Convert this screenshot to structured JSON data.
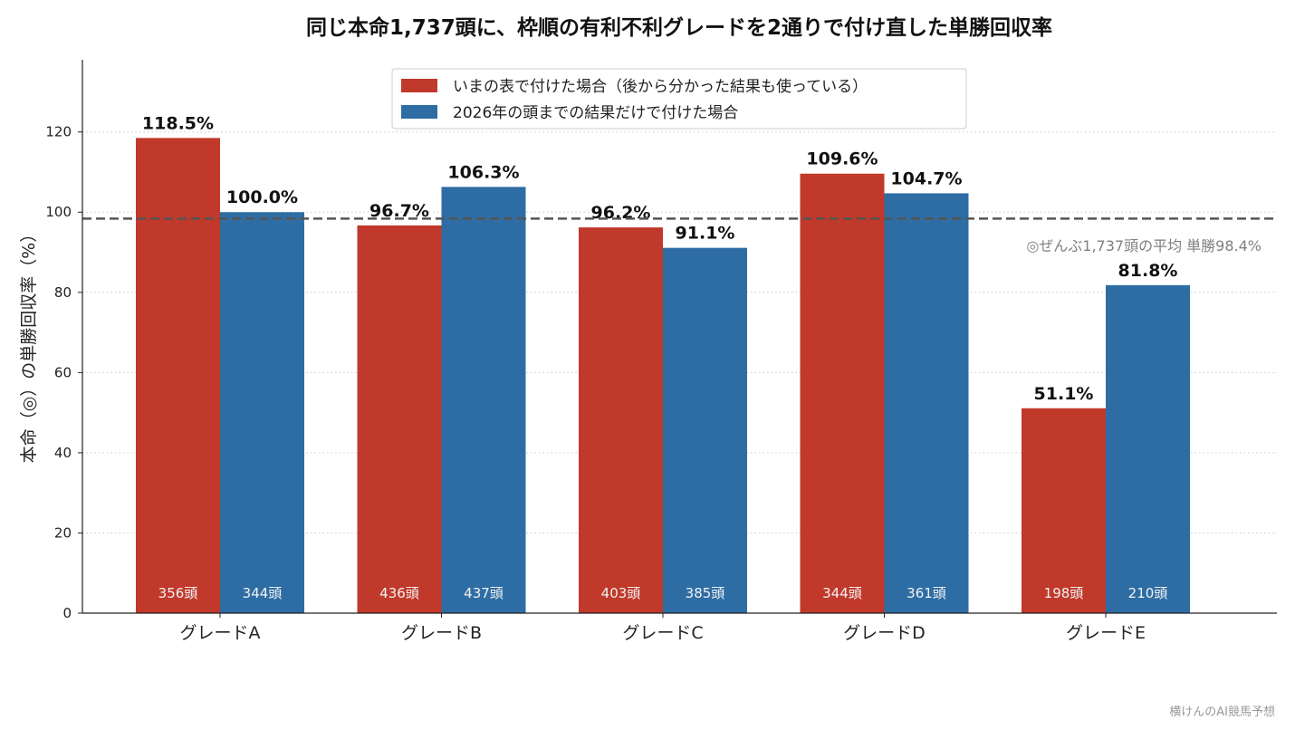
{
  "chart_data": {
    "type": "bar",
    "title": "同じ本命1,737頭に、枠順の有利不利グレードを2通りで付け直した単勝回収率",
    "ylabel": "本命（◎）の単勝回収率（%）",
    "xlabel": "",
    "ylim": [
      0,
      138
    ],
    "yticks": [
      0,
      20,
      40,
      60,
      80,
      100,
      120
    ],
    "categories": [
      "グレードA",
      "グレードB",
      "グレードC",
      "グレードD",
      "グレードE"
    ],
    "series": [
      {
        "name": "いまの表で付けた場合（後から分かった結果も使っている）",
        "color": "#c0392b",
        "values": [
          118.5,
          96.7,
          96.2,
          109.6,
          51.1
        ],
        "value_labels": [
          "118.5%",
          "96.7%",
          "96.2%",
          "109.6%",
          "51.1%"
        ],
        "counts": [
          "356頭",
          "436頭",
          "403頭",
          "344頭",
          "198頭"
        ]
      },
      {
        "name": "2026年の頭までの結果だけで付けた場合",
        "color": "#2e6da4",
        "values": [
          100.0,
          106.3,
          91.1,
          104.7,
          81.8
        ],
        "value_labels": [
          "100.0%",
          "106.3%",
          "91.1%",
          "104.7%",
          "81.8%"
        ],
        "counts": [
          "344頭",
          "437頭",
          "385頭",
          "361頭",
          "210頭"
        ]
      }
    ],
    "reference_line": {
      "value": 98.4,
      "label": "◎ぜんぶ1,737頭の平均 単勝98.4%",
      "color": "#555555",
      "style": "dashed"
    },
    "grid": "horizontal-dotted",
    "legend_position": "top-center"
  },
  "credit": "横けんのAI競馬予想"
}
